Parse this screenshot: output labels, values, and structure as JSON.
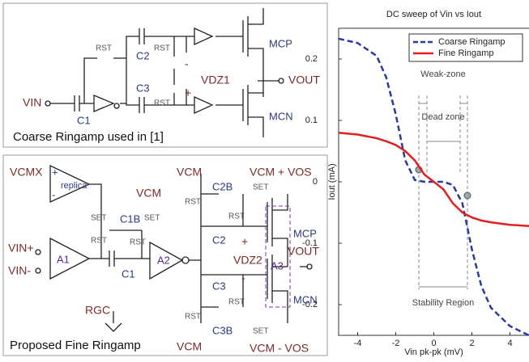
{
  "coarse": {
    "title": "Coarse Ringamp used in [1]",
    "vin": "VIN",
    "c1": "C1",
    "rst1": "RST",
    "c2": "C2",
    "c3": "C3",
    "rst2": "RST",
    "rst3": "RST",
    "vdz": "VDZ1",
    "minus": "-",
    "plus": "+",
    "mcp": "MCP",
    "mcn": "MCN",
    "vout": "VOUT"
  },
  "fine": {
    "title": "Proposed Fine Ringamp",
    "vcmx": "VCMX",
    "replica": "replica",
    "rplus": "+",
    "rminus": "-",
    "a1": "A1",
    "vinp": "VIN+",
    "vinm": "VIN-",
    "rgc": "RGC",
    "set1": "SET",
    "rst1": "RST",
    "c1b": "C1B",
    "set2": "SET",
    "rst2": "RST",
    "c1": "C1",
    "a2": "A2",
    "vcm1": "VCM",
    "vcm2": "VCM",
    "vcm3": "VCM",
    "c2b": "C2B",
    "c2": "C2",
    "c3": "C3",
    "c3b": "C3B",
    "plus": "+",
    "minus": "-",
    "vdz": "VDZ2",
    "a3": "A3",
    "mcp": "MCP",
    "mcn": "MCN",
    "vout": "VOUT",
    "vcmp": "VCM + VOS",
    "vcmm": "VCM - VOS",
    "set3": "SET",
    "set4": "SET",
    "rst3": "RST",
    "rst4": "RST",
    "rst5": "RST",
    "rst6": "RST"
  },
  "chart_data": {
    "type": "line",
    "title": "DC sweep of Vin vs Iout",
    "x_label": "Vin pk-pk (mV)",
    "y_label": "Iout (mA)",
    "x": [
      -5,
      -4,
      -3,
      -2.5,
      -2,
      -1.5,
      -1,
      -0.5,
      0,
      0.5,
      1,
      1.5,
      2,
      2.5,
      3,
      4,
      5
    ],
    "series": [
      {
        "name": "Coarse Ringamp",
        "color": "#2b3a9c",
        "dash": true,
        "values": [
          0.233,
          0.226,
          0.205,
          0.17,
          0.11,
          0.035,
          0.003,
          0,
          0,
          0,
          -0.005,
          -0.035,
          -0.11,
          -0.17,
          -0.205,
          -0.235,
          -0.25
        ]
      },
      {
        "name": "Fine Ringamp",
        "color": "#e02020",
        "dash": false,
        "values": [
          0.08,
          0.077,
          0.071,
          0.066,
          0.06,
          0.05,
          0.035,
          0.012,
          0,
          -0.012,
          -0.035,
          -0.05,
          -0.058,
          -0.063,
          -0.066,
          -0.07,
          -0.072
        ]
      }
    ],
    "xlim": [
      -5,
      5
    ],
    "ylim": [
      -0.25,
      0.25
    ],
    "xticks": [
      -4,
      -2,
      0,
      2,
      4
    ],
    "yticks": [
      -0.2,
      -0.1,
      0,
      0.1,
      0.2
    ],
    "legend": "upper right",
    "annotations": [
      "Weak-zone",
      "Dead zone",
      "Stability Region"
    ]
  }
}
